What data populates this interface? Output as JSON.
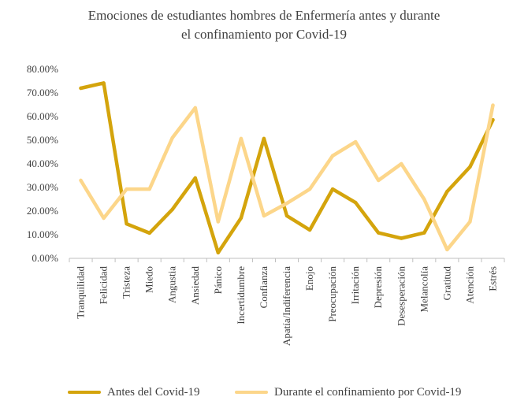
{
  "chart_data": {
    "type": "line",
    "title": "Emociones  de estudiantes hombres de Enfermería antes y durante",
    "subtitle": "el confinamiento por Covid-19",
    "categories": [
      "Tranquilidad",
      "Felicidad",
      "Tristeza",
      "Miedo",
      "Angustia",
      "Ansiedad",
      "Pánico",
      "Incertidumbre",
      "Confianza",
      "Apatía/Indiferencia",
      "Enojo",
      "Preocupación",
      "Irritación",
      "Depresión",
      "Desesperación",
      "Melancolía",
      "Gratitud",
      "Atención",
      "Estrés"
    ],
    "y_ticks": [
      "0.00%",
      "10.00%",
      "20.00%",
      "30.00%",
      "40.00%",
      "50.00%",
      "60.00%",
      "70.00%",
      "80.00%"
    ],
    "ylim": [
      0,
      80
    ],
    "xlabel": "",
    "ylabel": "",
    "grid": false,
    "legend_position": "bottom",
    "series": [
      {
        "name": "Antes del Covid-19",
        "color": "#D4A40C",
        "values": [
          72.0,
          74.2,
          14.6,
          10.7,
          20.7,
          34.0,
          2.4,
          17.1,
          50.7,
          18.0,
          12.0,
          29.3,
          23.6,
          10.8,
          8.5,
          10.8,
          28.3,
          38.7,
          58.6
        ]
      },
      {
        "name": "Durante el confinamiento por Covid-19",
        "color": "#FCD68A",
        "values": [
          33.0,
          17.0,
          29.3,
          29.3,
          51.0,
          63.7,
          15.5,
          50.7,
          18.0,
          23.3,
          29.3,
          43.4,
          49.3,
          33.0,
          40.0,
          25.0,
          3.7,
          15.5,
          64.8
        ]
      }
    ]
  }
}
